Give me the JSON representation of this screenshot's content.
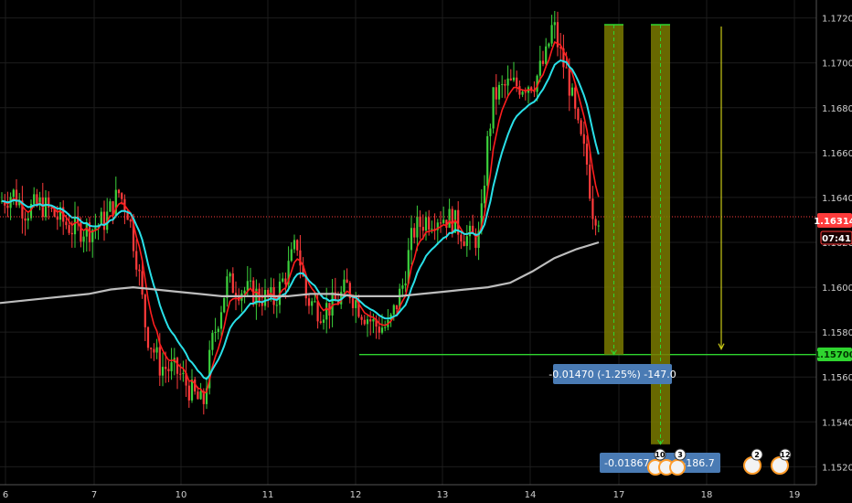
{
  "chart_data": {
    "type": "candlestick",
    "grid": true,
    "x_ticks": [
      "6",
      "7",
      "10",
      "11",
      "12",
      "13",
      "14",
      "17",
      "18",
      "19"
    ],
    "y_ticks": [
      "1.17200",
      "1.17000",
      "1.16800",
      "1.16600",
      "1.16400",
      "1.16200",
      "1.16000",
      "1.15800",
      "1.15600",
      "1.15400",
      "1.15200"
    ],
    "ylim": [
      1.1512,
      1.1728
    ],
    "current_price": {
      "label": "1.16314",
      "value": 1.16314,
      "color": "#ff3b3b"
    },
    "countdown": "07:41",
    "target_level": {
      "label": "1.15700",
      "value": 1.157,
      "color": "#2fd52f"
    },
    "measure_1": {
      "label": "-0.01470 (-1.25%) -147.0",
      "from": 1.1717,
      "to": 1.157
    },
    "measure_2": {
      "label_prefix": "-0.01867",
      "label_suffix": "-186.7",
      "from": 1.1717,
      "to": 1.153
    },
    "event_badges": [
      "10",
      "3",
      "2",
      "12"
    ],
    "colors": {
      "up": "#3cd13c",
      "down": "#ff3b3b",
      "ema_fast": "#ff1e1e",
      "ema_slow": "#29e0e8",
      "ma_long": "#bdbdbd",
      "measure_fill": "#7a7a00",
      "measure_line": "#2fd52f",
      "arrow": "#c9c916"
    },
    "ma_long_values": [
      1.1593,
      1.1594,
      1.1595,
      1.1596,
      1.1597,
      1.1599,
      1.16,
      1.1599,
      1.1598,
      1.1597,
      1.1596,
      1.1596,
      1.1596,
      1.1596,
      1.1597,
      1.1597,
      1.1596,
      1.1596,
      1.1596,
      1.1597,
      1.1598,
      1.1599,
      1.16,
      1.1602,
      1.1607,
      1.1613,
      1.1617,
      1.162
    ]
  }
}
